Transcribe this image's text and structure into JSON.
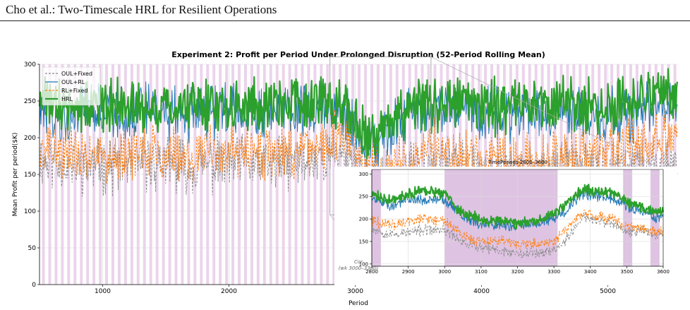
{
  "page": {
    "header": "Cho et al.: Two-Timescale HRL for Resilient Operations"
  },
  "chart_data": [
    {
      "type": "line",
      "title": "Experiment 2: Profit per Period Under Prolonged Disruption (52-Period Rolling Mean)",
      "xlabel": "Period",
      "ylabel": "Mean Profit per period($K)",
      "xlim": [
        500,
        5550
      ],
      "ylim": [
        0,
        300
      ],
      "xticks": [
        1000,
        2000,
        3000,
        4000,
        5000
      ],
      "yticks": [
        0,
        50,
        100,
        150,
        200,
        250,
        300
      ],
      "grid": true,
      "legend_position": "top-left",
      "series": [
        {
          "name": "OUL+Fixed",
          "color": "#8c8c8c",
          "style": "dashed",
          "x": [
            500,
            800,
            1100,
            1400,
            1700,
            2000,
            2300,
            2600,
            2800,
            2950,
            3050,
            3200,
            3400,
            3600,
            3800,
            4000,
            4300,
            4600,
            4900,
            5200,
            5550
          ],
          "y": [
            170,
            160,
            162,
            165,
            160,
            165,
            162,
            168,
            175,
            185,
            145,
            140,
            150,
            170,
            160,
            158,
            150,
            160,
            150,
            160,
            165
          ]
        },
        {
          "name": "OUL+RL",
          "color": "#1f77b4",
          "style": "solid",
          "x": [
            500,
            800,
            1100,
            1400,
            1700,
            2000,
            2300,
            2600,
            2800,
            2950,
            3050,
            3200,
            3400,
            3600,
            3800,
            4000,
            4300,
            4600,
            4900,
            5200,
            5550
          ],
          "y": [
            230,
            232,
            236,
            234,
            232,
            240,
            237,
            240,
            245,
            232,
            195,
            200,
            225,
            240,
            238,
            230,
            235,
            232,
            230,
            235,
            240
          ]
        },
        {
          "name": "RL+Fixed",
          "color": "#ff7f0e",
          "style": "dashed",
          "x": [
            500,
            800,
            1100,
            1400,
            1700,
            2000,
            2300,
            2600,
            2800,
            2950,
            3050,
            3200,
            3400,
            3600,
            3800,
            4000,
            4300,
            4600,
            4900,
            5200,
            5550
          ],
          "y": [
            185,
            178,
            180,
            182,
            178,
            183,
            180,
            186,
            195,
            210,
            165,
            158,
            165,
            190,
            175,
            172,
            168,
            175,
            178,
            190,
            210
          ]
        },
        {
          "name": "HRL",
          "color": "#2ca02c",
          "style": "solid",
          "x": [
            500,
            800,
            1100,
            1400,
            1700,
            2000,
            2300,
            2600,
            2800,
            2950,
            3050,
            3200,
            3400,
            3600,
            3800,
            4000,
            4300,
            4600,
            4900,
            5200,
            5550
          ],
          "y": [
            245,
            240,
            242,
            244,
            240,
            246,
            244,
            248,
            250,
            235,
            205,
            210,
            235,
            250,
            246,
            242,
            245,
            248,
            242,
            250,
            255
          ]
        }
      ],
      "shaded_periods": {
        "color": "#e8cde8",
        "start": 520,
        "interval": 50,
        "width": 22
      }
    },
    {
      "type": "line",
      "title": "TimePeriods 2800–3600",
      "annotation": [
        "Cor",
        "(wk 3000–3300)"
      ],
      "xlim": [
        2800,
        3600
      ],
      "ylim": [
        95,
        310
      ],
      "xticks": [
        2800,
        2900,
        3000,
        3100,
        3200,
        3300,
        3400,
        3500,
        3600
      ],
      "yticks": [
        100,
        150,
        200,
        250,
        300
      ],
      "shaded_ranges": [
        [
          2800,
          2825
        ],
        [
          3000,
          3310
        ],
        [
          3490,
          3515
        ],
        [
          3565,
          3590
        ]
      ],
      "series": [
        {
          "name": "OUL+Fixed",
          "color": "#8c8c8c",
          "style": "dashed",
          "x": [
            2800,
            2850,
            2900,
            2950,
            3000,
            3030,
            3060,
            3100,
            3150,
            3200,
            3250,
            3300,
            3340,
            3380,
            3420,
            3460,
            3500,
            3540,
            3580,
            3600
          ],
          "y": [
            180,
            165,
            170,
            175,
            175,
            160,
            145,
            135,
            130,
            125,
            125,
            130,
            160,
            205,
            195,
            190,
            170,
            175,
            165,
            170
          ]
        },
        {
          "name": "OUL+RL",
          "color": "#1f77b4",
          "style": "solid",
          "x": [
            2800,
            2850,
            2900,
            2950,
            3000,
            3030,
            3060,
            3100,
            3150,
            3200,
            3250,
            3300,
            3340,
            3380,
            3420,
            3460,
            3500,
            3540,
            3580,
            3600
          ],
          "y": [
            245,
            230,
            240,
            245,
            240,
            220,
            200,
            190,
            185,
            185,
            190,
            200,
            225,
            255,
            250,
            245,
            230,
            215,
            205,
            205
          ]
        },
        {
          "name": "RL+Fixed",
          "color": "#ff7f0e",
          "style": "dashed",
          "x": [
            2800,
            2850,
            2900,
            2950,
            3000,
            3030,
            3060,
            3100,
            3150,
            3200,
            3250,
            3300,
            3340,
            3380,
            3420,
            3460,
            3500,
            3540,
            3580,
            3600
          ],
          "y": [
            195,
            185,
            195,
            200,
            195,
            175,
            160,
            150,
            150,
            145,
            145,
            150,
            180,
            215,
            205,
            200,
            180,
            180,
            170,
            175
          ]
        },
        {
          "name": "HRL",
          "color": "#2ca02c",
          "style": "solid",
          "x": [
            2800,
            2850,
            2900,
            2950,
            3000,
            3030,
            3060,
            3100,
            3150,
            3200,
            3250,
            3300,
            3340,
            3380,
            3420,
            3460,
            3500,
            3540,
            3580,
            3600
          ],
          "y": [
            255,
            240,
            255,
            265,
            255,
            225,
            210,
            200,
            195,
            190,
            195,
            210,
            240,
            265,
            262,
            260,
            240,
            225,
            215,
            215
          ]
        }
      ]
    }
  ]
}
